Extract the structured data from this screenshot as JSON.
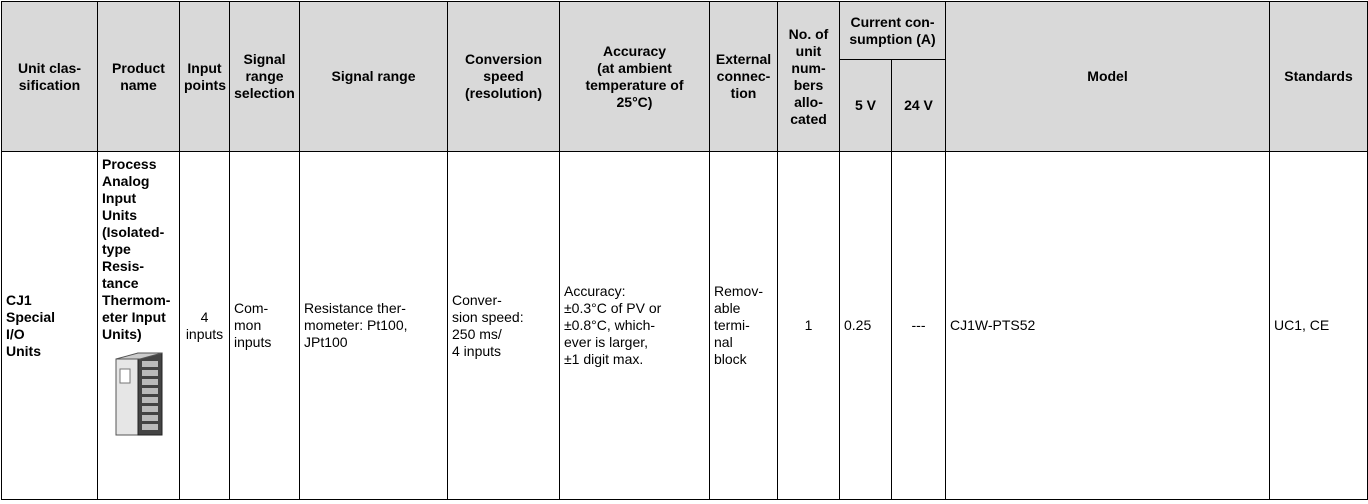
{
  "table": {
    "header": [
      "Unit clas-\nsification",
      "Product\nname",
      "Input\npoints",
      "Signal\nrange\nselection",
      "Signal range",
      "Conversion\nspeed\n(resolution)",
      "Accuracy\n(at ambient\ntemperature of\n25°C)",
      "External\nconnec-\ntion",
      "No. of\nunit\nnum-\nbers\nallo-\ncated",
      "Current con-\nsumption (A)",
      "Model",
      "Standards"
    ],
    "subheader": [
      "5 V",
      "24 V"
    ],
    "rows": [
      [
        "CJ1\nSpecial\nI/O\nUnits",
        "Process\nAnalog\nInput Units\n(Isolated-\ntype\nResis-\ntance\nThermom-\neter Input\nUnits)",
        "4\ninputs",
        "Com-\nmon\ninputs",
        "Resistance ther-\nmometer: Pt100,\nJPt100",
        "Conver-\nsion speed:\n250 ms/\n4 inputs",
        "Accuracy:\n±0.3°C of PV or\n±0.8°C, which-\never is larger,\n±1 digit max.",
        "Remov-\nable\ntermi-\nnal\nblock",
        "1",
        "0.25",
        "---",
        "CJ1W-PTS52",
        "UC1, CE"
      ]
    ]
  }
}
